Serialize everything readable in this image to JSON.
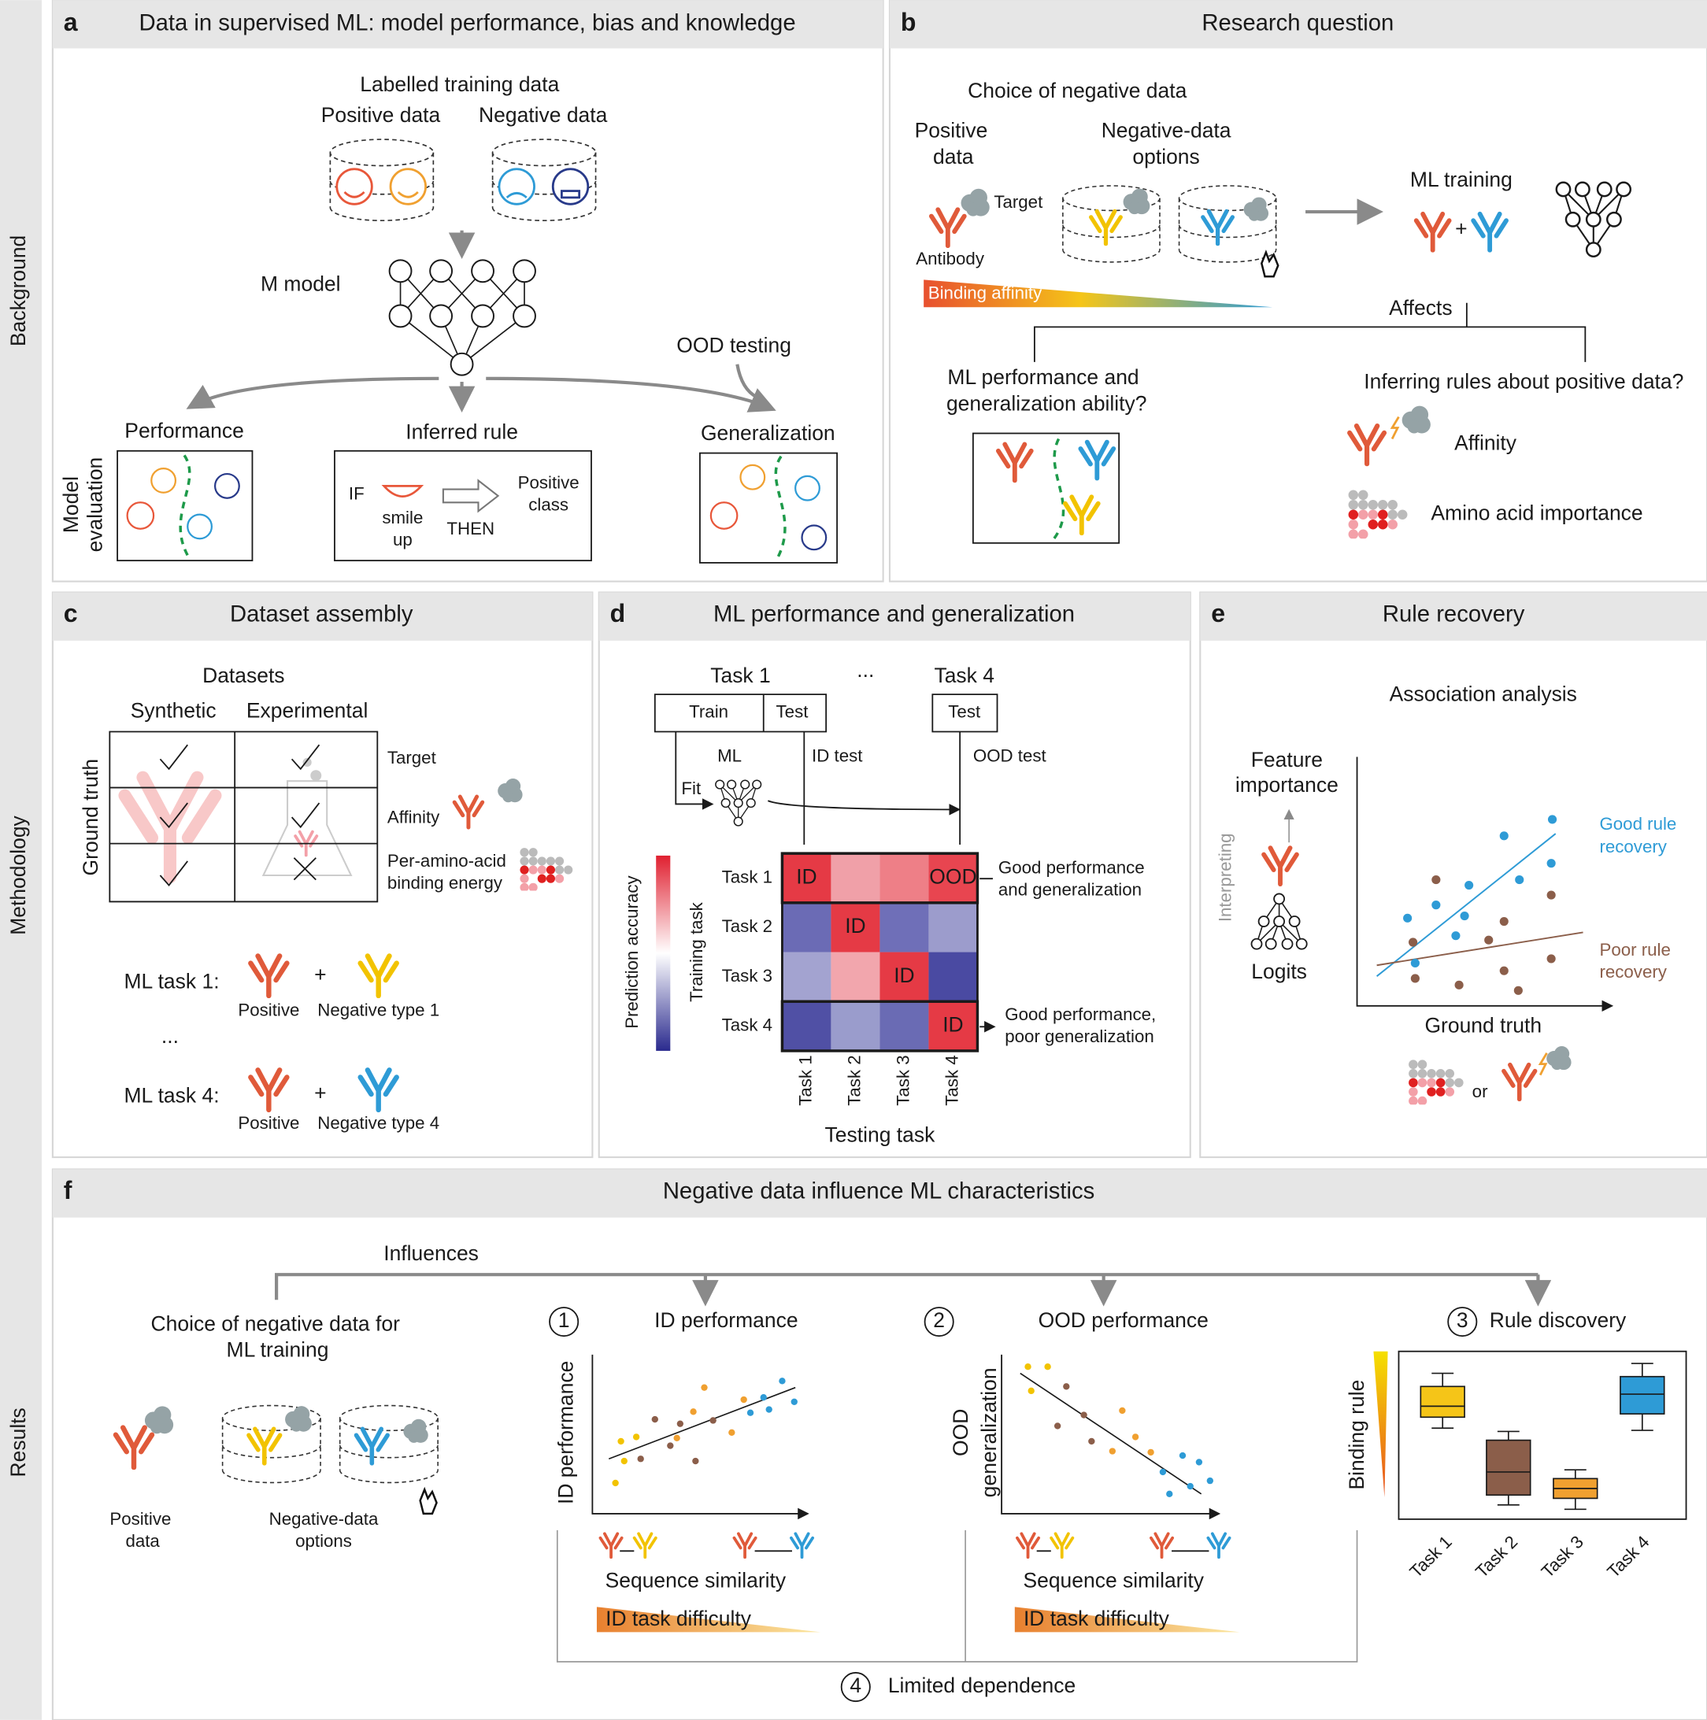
{
  "side_labels": {
    "background": "Background",
    "methodology": "Methodology",
    "results": "Results"
  },
  "panel_a": {
    "letter": "a",
    "title": "Data in supervised ML: model performance, bias and knowledge",
    "labelled_training_data": "Labelled training data",
    "positive_data": "Positive data",
    "negative_data": "Negative data",
    "model": "M model",
    "ood_testing": "OOD testing",
    "performance": "Performance",
    "inferred_rule": "Inferred rule",
    "generalization": "Generalization",
    "model_evaluation": [
      "Model",
      "evaluation"
    ],
    "rule_if": "IF",
    "rule_condition": [
      "smile",
      "up"
    ],
    "rule_then": "THEN",
    "rule_result": [
      "Positive",
      "class"
    ]
  },
  "panel_b": {
    "letter": "b",
    "title": "Research question",
    "choice": "Choice of negative data",
    "positive_data": [
      "Positive",
      "data"
    ],
    "negative_options": [
      "Negative-data",
      "options"
    ],
    "target": "Target",
    "antibody": "Antibody",
    "binding_affinity": "Binding affinity",
    "ml_training": "ML training",
    "plus": "+",
    "affects": "Affects",
    "question_performance": [
      "ML performance and",
      "generalization ability?"
    ],
    "question_rules": "Inferring rules about positive data?",
    "affinity": "Affinity",
    "amino_acid_importance": "Amino acid importance"
  },
  "panel_c": {
    "letter": "c",
    "title": "Dataset assembly",
    "datasets": "Datasets",
    "columns": [
      "Synthetic",
      "Experimental"
    ],
    "ground_truth": "Ground truth",
    "rows": [
      "Target",
      "Affinity"
    ],
    "row_per_amino": [
      "Per-amino-acid",
      "binding energy"
    ],
    "tasks": [
      {
        "label": "ML task 1:",
        "plus": "+",
        "positive": "Positive",
        "negative": "Negative type 1"
      },
      {
        "label": "ML task 4:",
        "plus": "+",
        "positive": "Positive",
        "negative": "Negative type 4"
      }
    ],
    "ellipsis": "..."
  },
  "panel_d": {
    "letter": "d",
    "title": "ML performance and generalization",
    "task_first": "Task 1",
    "ellipsis": "...",
    "task_last": "Task 4",
    "train": "Train",
    "test": "Test",
    "test_ood": "Test",
    "ml": "ML",
    "id_test": "ID test",
    "ood_test": "OOD test",
    "fit": "Fit",
    "prediction_accuracy": "Prediction accuracy",
    "training_task": "Training task",
    "testing_task": "Testing task",
    "row_labels": [
      "Task 1",
      "Task 2",
      "Task 3",
      "Task 4"
    ],
    "col_labels": [
      "Task 1",
      "Task 2",
      "Task 3",
      "Task 4"
    ],
    "cells": [
      [
        "ID",
        null,
        null,
        "OOD"
      ],
      [
        null,
        "ID",
        null,
        null
      ],
      [
        null,
        null,
        "ID",
        null
      ],
      [
        null,
        null,
        null,
        "ID"
      ]
    ],
    "note_good": [
      "Good performance",
      "and generalization"
    ],
    "note_poor": [
      "Good performance,",
      "poor generalization"
    ]
  },
  "panel_e": {
    "letter": "e",
    "title": "Rule recovery",
    "association": "Association analysis",
    "feature_importance": [
      "Feature",
      "importance"
    ],
    "interpreting": "Interpreting",
    "logits": "Logits",
    "good_rule": [
      "Good rule",
      "recovery"
    ],
    "poor_rule": [
      "Poor rule",
      "recovery"
    ],
    "ground_truth": "Ground truth",
    "or": "or"
  },
  "panel_f": {
    "letter": "f",
    "title": "Negative data influence ML characteristics",
    "influences": "Influences",
    "choice": [
      "Choice of negative data for",
      "ML training"
    ],
    "positive_data": [
      "Positive",
      "data"
    ],
    "negative_options": [
      "Negative-data",
      "options"
    ],
    "steps": [
      {
        "number": 1,
        "title": "ID performance"
      },
      {
        "number": 2,
        "title": "OOD performance"
      },
      {
        "number": 3,
        "title": "Rule discovery"
      },
      {
        "number": 4,
        "title": "Limited dependence"
      }
    ],
    "id_axis": "ID performance",
    "ood_axis": [
      "OOD",
      "generalization"
    ],
    "sequence_similarity": [
      "Sequence similarity",
      "Sequence similarity"
    ],
    "task_difficulty": [
      "ID task difficulty",
      "ID task difficulty"
    ],
    "binding_rule": "Binding rule",
    "box_tasks": [
      "Task 1",
      "Task 2",
      "Task 3",
      "Task 4"
    ]
  }
}
